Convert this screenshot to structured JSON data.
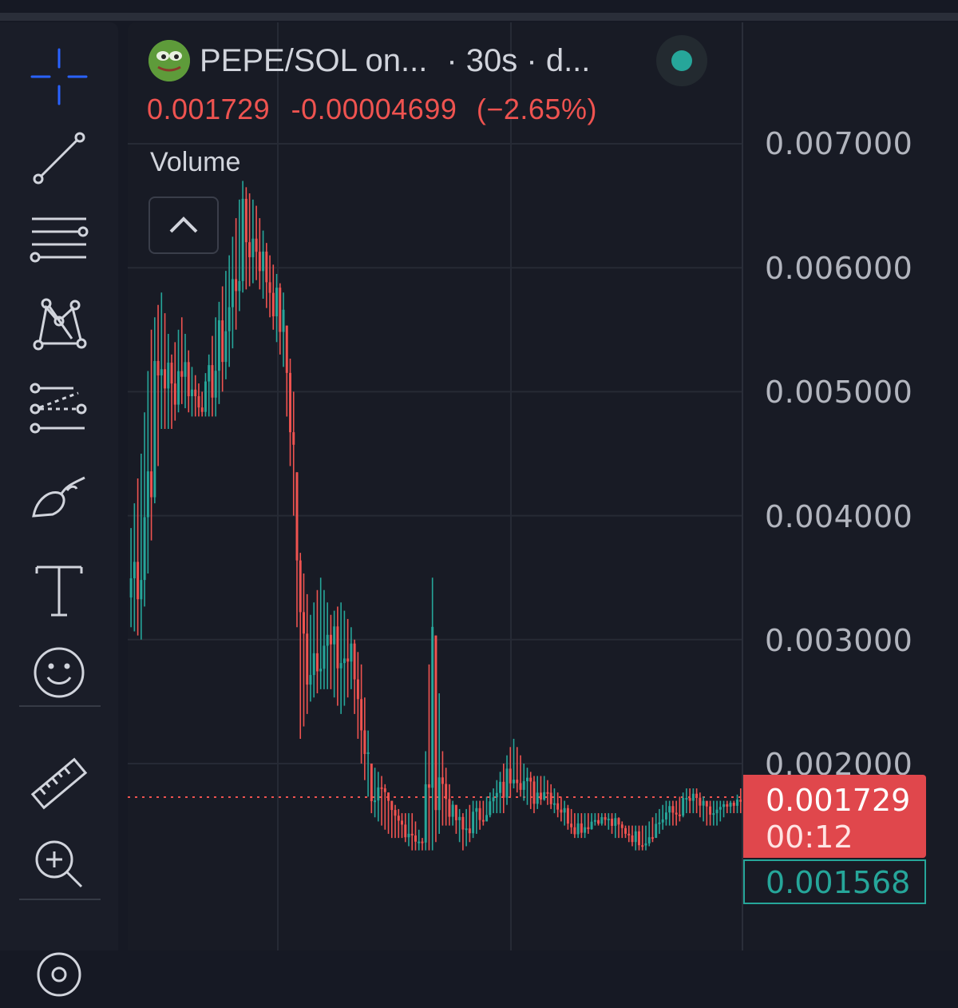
{
  "header": {
    "pair_name": "PEPE/SOL on...",
    "interval": "· 30s · d...",
    "last_close": "0.001729",
    "change": "-0.00004699",
    "change_pct": "(−2.65%)",
    "indicator": "Volume"
  },
  "toolbar": {
    "items": [
      "crosshair-icon",
      "trend-line-icon",
      "fib-retracement-icon",
      "pattern-icon",
      "forecast-icon",
      "brush-icon",
      "text-icon",
      "emoji-icon",
      "ruler-icon",
      "zoom-in-icon",
      "magnet-icon"
    ]
  },
  "price_axis": {
    "labels": [
      "0.007000",
      "0.006000",
      "0.005000",
      "0.004000",
      "0.003000",
      "0.002000"
    ],
    "last_price": "0.001729",
    "countdown": "00:12",
    "low_price": "0.001568"
  },
  "colors": {
    "up": "#26a69a",
    "down": "#ef5350",
    "accent": "#2962ff",
    "background": "#181b25"
  },
  "chart_data": {
    "type": "candlestick",
    "interval": "30s",
    "ylim": [
      0.0014,
      0.0079
    ],
    "y_ticks": [
      0.002,
      0.003,
      0.004,
      0.005,
      0.006,
      0.007
    ],
    "last_price": 0.001729,
    "low_marker": 0.001568,
    "grid": true,
    "anchors": [
      [
        0,
        0.0039,
        0.0031
      ],
      [
        3,
        0.0045,
        0.003
      ],
      [
        6,
        0.0055,
        0.0038
      ],
      [
        9,
        0.0058,
        0.0047
      ],
      [
        12,
        0.0053,
        0.0047
      ],
      [
        15,
        0.0056,
        0.0049
      ],
      [
        18,
        0.0052,
        0.0048
      ],
      [
        21,
        0.005,
        0.0048
      ],
      [
        25,
        0.0056,
        0.0048
      ],
      [
        29,
        0.0061,
        0.0052
      ],
      [
        33,
        0.0067,
        0.0058
      ],
      [
        37,
        0.0065,
        0.0059
      ],
      [
        41,
        0.0061,
        0.0056
      ],
      [
        45,
        0.0058,
        0.0052
      ],
      [
        48,
        0.005,
        0.004
      ],
      [
        50,
        0.0037,
        0.0022
      ],
      [
        53,
        0.0032,
        0.0025
      ],
      [
        56,
        0.0035,
        0.0026
      ],
      [
        59,
        0.0032,
        0.0026
      ],
      [
        62,
        0.0033,
        0.0024
      ],
      [
        65,
        0.0031,
        0.0026
      ],
      [
        68,
        0.0028,
        0.002
      ],
      [
        71,
        0.002,
        0.0016
      ],
      [
        74,
        0.0019,
        0.0015
      ],
      [
        77,
        0.0017,
        0.0014
      ],
      [
        80,
        0.0016,
        0.0014
      ],
      [
        83,
        0.0016,
        0.0013
      ],
      [
        86,
        0.0014,
        0.0013
      ],
      [
        89,
        0.0035,
        0.0013
      ],
      [
        92,
        0.0021,
        0.0015
      ],
      [
        95,
        0.0017,
        0.0015
      ],
      [
        98,
        0.0016,
        0.0013
      ],
      [
        101,
        0.0017,
        0.0014
      ],
      [
        104,
        0.0017,
        0.0015
      ],
      [
        107,
        0.0018,
        0.0016
      ],
      [
        110,
        0.002,
        0.0016
      ],
      [
        113,
        0.0022,
        0.0018
      ],
      [
        116,
        0.002,
        0.0017
      ],
      [
        119,
        0.0019,
        0.0016
      ],
      [
        122,
        0.0019,
        0.0017
      ],
      [
        125,
        0.0018,
        0.0016
      ],
      [
        128,
        0.0017,
        0.0015
      ],
      [
        131,
        0.0016,
        0.0014
      ],
      [
        134,
        0.0016,
        0.0014
      ],
      [
        137,
        0.0016,
        0.0015
      ],
      [
        140,
        0.0016,
        0.0015
      ],
      [
        143,
        0.0016,
        0.0014
      ],
      [
        146,
        0.0015,
        0.0014
      ],
      [
        149,
        0.0015,
        0.0013
      ],
      [
        152,
        0.0015,
        0.0013
      ],
      [
        155,
        0.0016,
        0.0014
      ],
      [
        158,
        0.0017,
        0.0015
      ],
      [
        161,
        0.0017,
        0.0015
      ],
      [
        164,
        0.0018,
        0.0016
      ],
      [
        167,
        0.0018,
        0.0016
      ],
      [
        170,
        0.0017,
        0.0015
      ],
      [
        173,
        0.0017,
        0.0015
      ],
      [
        176,
        0.0017,
        0.0016
      ],
      [
        178,
        0.0017,
        0.0016
      ],
      [
        180,
        0.0018,
        0.0016
      ]
    ]
  }
}
